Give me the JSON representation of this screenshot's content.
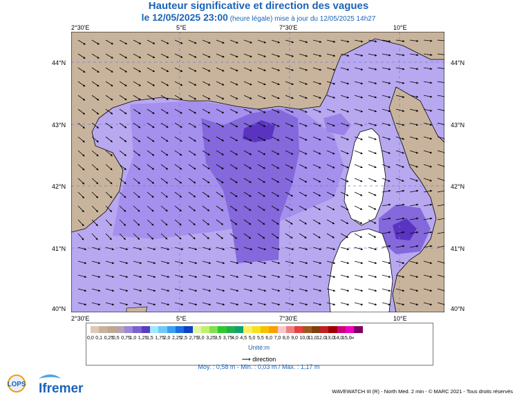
{
  "title": {
    "line1": "Hauteur significative et direction des vagues",
    "datetime": "le 12/05/2025 23:00",
    "note": " (heure légale) mise à jour du 12/05/2025 14h27"
  },
  "axes": {
    "lon_top": [
      "2°30'E",
      "5°E",
      "7°30'E",
      "10°E"
    ],
    "lon_bottom": [
      "2°30'E",
      "5°E",
      "7°30'E",
      "10°E"
    ],
    "lat_left": [
      "44°N",
      "43°N",
      "42°N",
      "41°N",
      "40°N"
    ],
    "lat_right": [
      "44°N",
      "43°N",
      "42°N",
      "41°N",
      "40°N"
    ]
  },
  "legend": {
    "colors": [
      "#dccab6",
      "#c9b29a",
      "#c0a890",
      "#b8a3b0",
      "#9a88d8",
      "#7a62d0",
      "#5a3cbf",
      "#a0e8ff",
      "#70c8f8",
      "#3aa0f0",
      "#1a70e0",
      "#1040c8",
      "#e0f8a0",
      "#c0f070",
      "#80e050",
      "#30c830",
      "#20b050",
      "#10a070",
      "#f8f060",
      "#f8e020",
      "#f8c000",
      "#f8a000",
      "#f8c8c8",
      "#f08080",
      "#e84040",
      "#a05820",
      "#804010",
      "#c02020",
      "#a00000",
      "#d00080",
      "#f000c0",
      "#800060"
    ],
    "labels": [
      "0,0",
      "0,1",
      "0,25",
      "0,5",
      "0,75",
      "1,0",
      "1,25",
      "1,5",
      "1,75",
      "2,0",
      "2,25",
      "2,5",
      "2,75",
      "3,0",
      "3,25",
      "3,5",
      "3,75",
      "4,0",
      "4,5",
      "5,0",
      "5,5",
      "6,0",
      "7,0",
      "8,0",
      "9,0",
      "10,0",
      "11,0",
      "12,0",
      "13,0",
      "14,0",
      "15,0",
      "∞"
    ],
    "unit": "Unité:m",
    "direction_label": "direction",
    "stats": "Moy. : 0,58 m   -   Min. : 0,03 m / Max. : 1,17 m"
  },
  "footer": {
    "logo_lops": "LOPS",
    "logo_ifremer": "Ifremer",
    "credits": "WAVEWATCH III (R) - North Med. 2 min - © MARC 2021 - Tous droits réservés"
  },
  "colors": {
    "land": "#c8b49c",
    "sea_low": "#b8a8f0",
    "sea_mid": "#9a82e8",
    "sea_high": "#7a5cd8",
    "sea_max": "#5a34c0",
    "title": "#1a63b8"
  }
}
